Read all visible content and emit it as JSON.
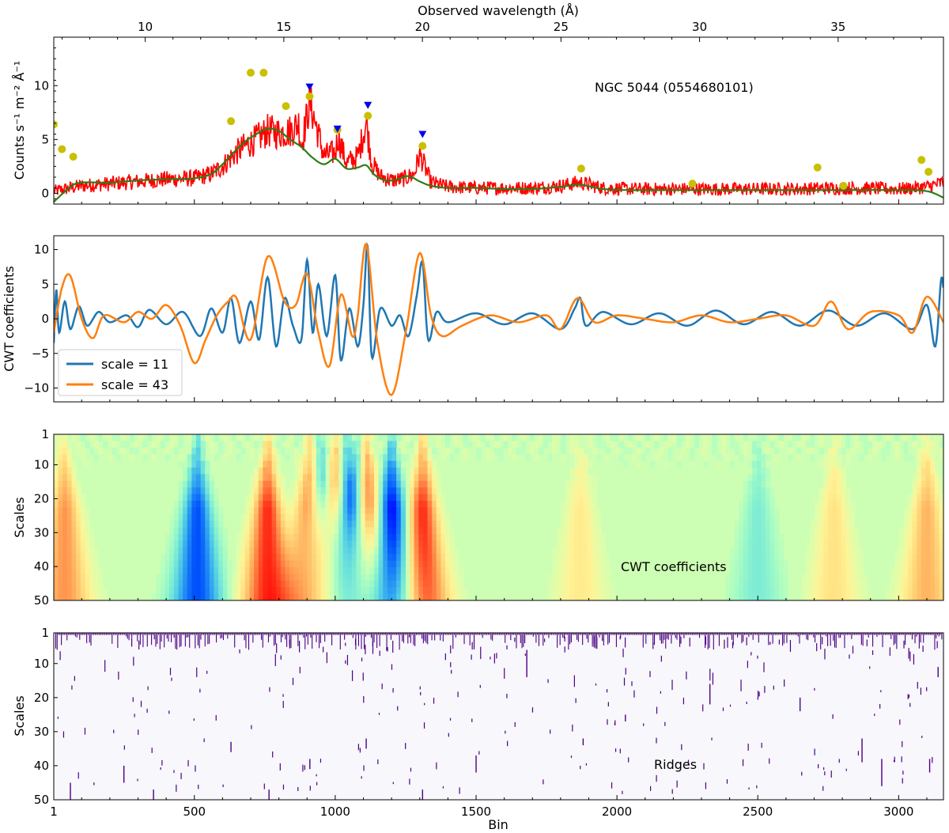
{
  "colors": {
    "spectrum": "#ff0000",
    "smooth": "#2e7d16",
    "marker_yellow": "#c8c000",
    "marker_blue": "#0000ee",
    "cwt_small": "#1f77b4",
    "cwt_large": "#ff7f0e",
    "ridges": "#4b0082",
    "ridges_bg": "#f8f7fc"
  },
  "chart_data": [
    {
      "type": "line",
      "panel": "spectrum",
      "ylabel": "Counts s⁻¹ m⁻² Å⁻¹",
      "top_xlabel": "Observed wavelength (Å)",
      "top_xticks": [
        10,
        15,
        20,
        25,
        30,
        35
      ],
      "top_xtick_labels": [
        "10",
        "15",
        "20",
        "25",
        "30",
        "35"
      ],
      "top_xlim": [
        6.7,
        38.8
      ],
      "yticks": [
        0,
        5,
        10
      ],
      "ytick_labels": [
        "0",
        "5",
        "10"
      ],
      "ylim": [
        -1.0,
        14.5
      ],
      "annotation": "NGC 5044 (0554680101)",
      "smooth_curve": {
        "x": [
          1,
          60,
          100,
          200,
          300,
          400,
          500,
          560,
          600,
          640,
          680,
          720,
          760,
          800,
          840,
          880,
          920,
          960,
          1000,
          1040,
          1080,
          1110,
          1140,
          1180,
          1220,
          1260,
          1300,
          1340,
          1400,
          1500,
          1600,
          1700,
          1800,
          1870,
          1950,
          2050,
          2200,
          2400,
          2600,
          2800,
          3000,
          3100,
          3159
        ],
        "y": [
          -0.8,
          0.6,
          1.0,
          1.0,
          1.2,
          1.3,
          1.4,
          1.8,
          2.7,
          3.8,
          4.8,
          5.5,
          6.0,
          5.8,
          5.0,
          4.3,
          3.3,
          2.7,
          3.2,
          2.3,
          2.4,
          2.6,
          1.7,
          1.2,
          1.3,
          1.6,
          1.1,
          0.7,
          0.5,
          0.5,
          0.4,
          0.4,
          0.6,
          0.8,
          0.4,
          0.3,
          0.3,
          0.3,
          0.3,
          0.3,
          0.3,
          0.2,
          -0.4
        ]
      },
      "spectrum_envelope": {
        "x": [
          1,
          60,
          100,
          200,
          300,
          400,
          500,
          560,
          600,
          640,
          680,
          720,
          760,
          800,
          840,
          870,
          880,
          910,
          960,
          1000,
          1010,
          1040,
          1080,
          1110,
          1130,
          1160,
          1200,
          1240,
          1280,
          1300,
          1310,
          1340,
          1400,
          1500,
          1600,
          1700,
          1800,
          1870,
          1950,
          2050,
          2200,
          2400,
          2600,
          2800,
          3000,
          3100,
          3159
        ],
        "y": [
          0.2,
          0.5,
          0.7,
          0.9,
          1.1,
          1.3,
          1.4,
          1.8,
          2.5,
          3.6,
          4.4,
          5.0,
          5.8,
          5.6,
          5.8,
          6.5,
          4.5,
          8.5,
          3.5,
          3.8,
          5.3,
          2.8,
          3.4,
          6.6,
          2.8,
          1.6,
          1.2,
          1.3,
          1.8,
          3.6,
          3.0,
          1.0,
          0.6,
          0.5,
          0.5,
          0.5,
          0.7,
          1.0,
          0.5,
          0.4,
          0.4,
          0.4,
          0.4,
          0.5,
          0.4,
          0.6,
          1.0
        ]
      },
      "peak_markers_yellow": {
        "x": [
          1,
          30,
          70,
          630,
          700,
          746,
          825,
          909,
          1008,
          1116,
          1310,
          1873,
          2268,
          2712,
          2804,
          3081,
          3106
        ],
        "y": [
          6.4,
          4.1,
          3.4,
          6.7,
          11.2,
          11.2,
          8.1,
          9.0,
          5.9,
          7.2,
          4.4,
          2.3,
          0.9,
          2.4,
          0.7,
          3.1,
          2.0
        ]
      },
      "peak_markers_blue": {
        "x": [
          909,
          1008,
          1116,
          1310
        ],
        "y": [
          9.9,
          6.0,
          8.2,
          5.5
        ]
      }
    },
    {
      "type": "line",
      "panel": "cwt",
      "ylabel": "CWT coefficients",
      "yticks": [
        -10,
        -5,
        0,
        5,
        10
      ],
      "ytick_labels": [
        "−10",
        "−5",
        "0",
        "5",
        "10"
      ],
      "ylim": [
        -12,
        12
      ],
      "series": [
        {
          "name": "scale = 11",
          "x": [
            1,
            10,
            20,
            40,
            60,
            90,
            120,
            160,
            200,
            260,
            300,
            340,
            400,
            460,
            520,
            560,
            600,
            630,
            660,
            700,
            730,
            760,
            790,
            820,
            850,
            880,
            900,
            920,
            940,
            970,
            1000,
            1020,
            1050,
            1080,
            1100,
            1115,
            1130,
            1160,
            1200,
            1230,
            1260,
            1290,
            1310,
            1330,
            1360,
            1400,
            1500,
            1600,
            1700,
            1800,
            1850,
            1870,
            1890,
            1950,
            2050,
            2150,
            2250,
            2350,
            2450,
            2550,
            2650,
            2750,
            2850,
            2950,
            3050,
            3100,
            3130,
            3150,
            3159
          ],
          "y": [
            -3.5,
            4.2,
            -2.0,
            2.5,
            -1.5,
            1.8,
            -1.0,
            1.0,
            -0.5,
            0.5,
            -1.2,
            1.3,
            -0.8,
            1.0,
            -2.5,
            1.5,
            -2.0,
            3.0,
            -3.5,
            2.5,
            -3.0,
            6.0,
            -4.0,
            3.0,
            -1.0,
            -3.0,
            8.5,
            -2.0,
            5.0,
            -2.5,
            6.3,
            -6.0,
            1.5,
            -4.0,
            2.0,
            10.5,
            -5.5,
            1.5,
            -1.0,
            0.5,
            -2.5,
            3.5,
            8.1,
            -3.0,
            1.0,
            -0.5,
            0.8,
            -0.8,
            0.8,
            -1.5,
            1.5,
            3.0,
            -1.0,
            1.0,
            -0.8,
            0.8,
            -1.0,
            1.2,
            -0.8,
            1.0,
            -1.0,
            1.2,
            -1.0,
            0.8,
            -1.5,
            2.0,
            -4.0,
            5.5,
            4.5
          ]
        },
        {
          "name": "scale = 43",
          "x": [
            1,
            30,
            60,
            100,
            140,
            180,
            250,
            300,
            350,
            400,
            450,
            500,
            540,
            580,
            620,
            650,
            700,
            760,
            820,
            860,
            900,
            940,
            980,
            1020,
            1060,
            1080,
            1110,
            1150,
            1200,
            1250,
            1300,
            1340,
            1380,
            1450,
            1550,
            1650,
            1750,
            1800,
            1860,
            1920,
            2000,
            2100,
            2200,
            2300,
            2400,
            2500,
            2600,
            2700,
            2760,
            2820,
            2900,
            3000,
            3050,
            3100,
            3159
          ],
          "y": [
            -2.0,
            4.5,
            6.2,
            0.0,
            -2.8,
            0.5,
            -0.5,
            1.0,
            0.0,
            2.0,
            -1.0,
            -6.4,
            -3.0,
            0.5,
            2.5,
            3.0,
            -3.0,
            9.0,
            2.5,
            2.0,
            6.5,
            -2.0,
            -6.8,
            3.5,
            -2.5,
            0.5,
            10.8,
            -3.5,
            -11.0,
            -2.0,
            9.5,
            0.5,
            -2.5,
            -1.0,
            0.5,
            -0.5,
            0.5,
            -1.5,
            3.0,
            -0.5,
            0.5,
            0.0,
            -0.5,
            0.5,
            -0.5,
            0.0,
            0.5,
            -1.0,
            2.5,
            -1.5,
            1.0,
            0.5,
            -2.0,
            3.2,
            -0.5
          ]
        }
      ]
    },
    {
      "type": "heatmap",
      "panel": "cwt_scalogram",
      "ylabel": "Scales",
      "yticks": [
        1,
        10,
        20,
        30,
        40,
        50
      ],
      "ytick_labels": [
        "1",
        "10",
        "20",
        "30",
        "40",
        "50"
      ],
      "ylim": [
        50,
        1
      ],
      "annotation": "CWT coefficients",
      "colormap": "rainbow",
      "features": [
        {
          "bin": 40,
          "value": 0.6
        },
        {
          "bin": 510,
          "value": -0.8
        },
        {
          "bin": 760,
          "value": 0.9
        },
        {
          "bin": 910,
          "value": 0.8
        },
        {
          "bin": 950,
          "value": -0.7
        },
        {
          "bin": 1000,
          "value": 0.85
        },
        {
          "bin": 1040,
          "value": -0.8
        },
        {
          "bin": 1080,
          "value": -0.6
        },
        {
          "bin": 1110,
          "value": 1.0
        },
        {
          "bin": 1200,
          "value": -1.0
        },
        {
          "bin": 1310,
          "value": 0.9
        },
        {
          "bin": 1870,
          "value": 0.25
        },
        {
          "bin": 2500,
          "value": -0.25
        },
        {
          "bin": 2770,
          "value": 0.3
        },
        {
          "bin": 3100,
          "value": 0.5
        }
      ]
    },
    {
      "type": "scatter",
      "panel": "ridges",
      "ylabel": "Scales",
      "xlabel": "Bin",
      "annotation": "Ridges",
      "xticks": [
        1,
        500,
        1000,
        1500,
        2000,
        2500,
        3000
      ],
      "xtick_labels": [
        "1",
        "500",
        "1000",
        "1500",
        "2000",
        "2500",
        "3000"
      ],
      "xlim": [
        1,
        3159
      ],
      "yticks": [
        1,
        10,
        20,
        30,
        40,
        50
      ],
      "ytick_labels": [
        "1",
        "10",
        "20",
        "30",
        "40",
        "50"
      ],
      "ylim": [
        50,
        1
      ],
      "ridge_lines": [
        {
          "bin": 60,
          "s0": 45,
          "s1": 50
        },
        {
          "bin": 250,
          "s0": 40,
          "s1": 45
        },
        {
          "bin": 355,
          "s0": 47,
          "s1": 50
        },
        {
          "bin": 630,
          "s0": 33,
          "s1": 36
        },
        {
          "bin": 765,
          "s0": 47,
          "s1": 50
        },
        {
          "bin": 910,
          "s0": 38,
          "s1": 41
        },
        {
          "bin": 1110,
          "s0": 32,
          "s1": 35
        },
        {
          "bin": 1310,
          "s0": 47,
          "s1": 50
        },
        {
          "bin": 1500,
          "s0": 37,
          "s1": 42
        },
        {
          "bin": 1680,
          "s0": 6,
          "s1": 14
        },
        {
          "bin": 1880,
          "s0": 32,
          "s1": 34
        },
        {
          "bin": 2030,
          "s0": 25,
          "s1": 27
        },
        {
          "bin": 2330,
          "s0": 16,
          "s1": 22
        },
        {
          "bin": 2650,
          "s0": 20,
          "s1": 24
        },
        {
          "bin": 2870,
          "s0": 32,
          "s1": 39
        },
        {
          "bin": 2940,
          "s0": 38,
          "s1": 46
        },
        {
          "bin": 3110,
          "s0": 38,
          "s1": 42
        },
        {
          "bin": 3140,
          "s0": 11,
          "s1": 14
        }
      ]
    }
  ]
}
